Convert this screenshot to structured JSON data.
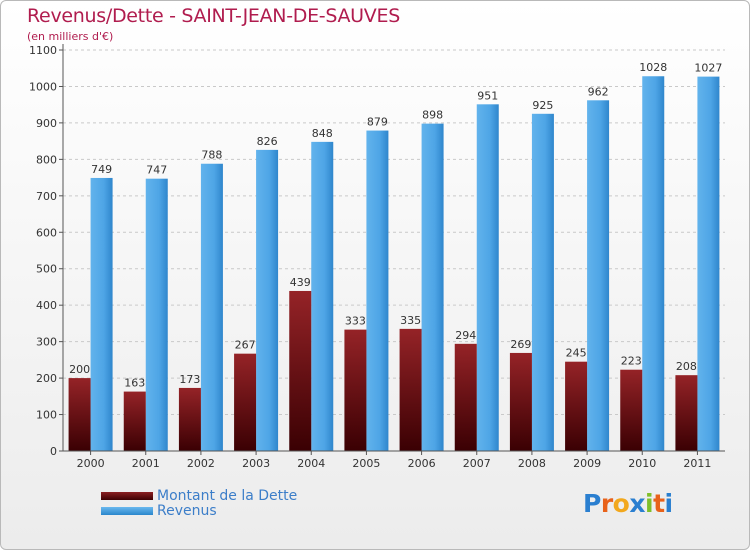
{
  "title": "Revenus/Dette - SAINT-JEAN-DE-SAUVES",
  "subtitle": "(en milliers d'€)",
  "chart_data": {
    "type": "bar",
    "categories": [
      "2000",
      "2001",
      "2002",
      "2003",
      "2004",
      "2005",
      "2006",
      "2007",
      "2008",
      "2009",
      "2010",
      "2011"
    ],
    "series": [
      {
        "name": "Montant de la Dette",
        "values": [
          200,
          163,
          173,
          267,
          439,
          333,
          335,
          294,
          269,
          245,
          223,
          208
        ],
        "color": "#7a0d11"
      },
      {
        "name": "Revenus",
        "values": [
          749,
          747,
          788,
          826,
          848,
          879,
          898,
          951,
          925,
          962,
          1028,
          1027
        ],
        "color": "#4aa3e6"
      }
    ],
    "ylim": [
      0,
      1100
    ],
    "yticks": [
      0,
      100,
      200,
      300,
      400,
      500,
      600,
      700,
      800,
      900,
      1000,
      1100
    ],
    "grid": true,
    "legend": "bottom-left"
  },
  "legend": {
    "debt_label": "Montant de la Dette",
    "revenue_label": "Revenus"
  },
  "logo": {
    "letters": [
      "P",
      "r",
      "o",
      "x",
      "i",
      "t",
      "i"
    ],
    "colors": [
      "#2a7fd0",
      "#e8621a",
      "#f2a81d",
      "#2a7fd0",
      "#7fbf2a",
      "#e8621a",
      "#2a7fd0"
    ]
  }
}
